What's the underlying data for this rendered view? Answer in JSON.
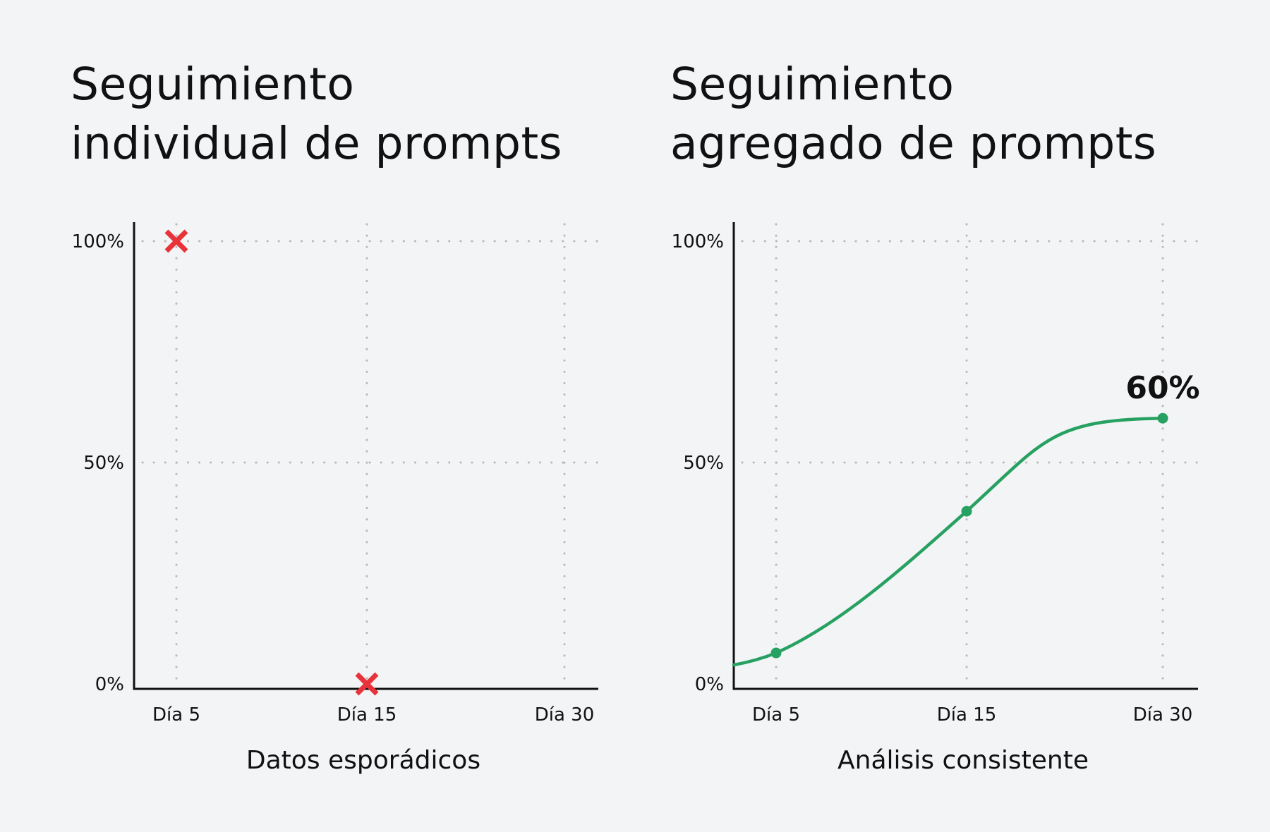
{
  "colors": {
    "background": "#f3f4f6",
    "axis": "#111111",
    "grid": "#b8b8b8",
    "marker_miss": "#e8333a",
    "series_line": "#27a161"
  },
  "chart_data": [
    {
      "type": "scatter",
      "title_lines": [
        "Seguimiento",
        "individual de prompts"
      ],
      "xlabel": "Datos esporádicos",
      "ylabel": "",
      "x_categories": [
        "Día 5",
        "Día 15",
        "Día 30"
      ],
      "y_ticks": [
        {
          "value": 0,
          "label": "0%"
        },
        {
          "value": 50,
          "label": "50%"
        },
        {
          "value": 100,
          "label": "100%"
        }
      ],
      "ylim": [
        0,
        100
      ],
      "grid": true,
      "marker": "x-icon",
      "points": [
        {
          "x": "Día 5",
          "y": 100
        },
        {
          "x": "Día 15",
          "y": 0
        }
      ]
    },
    {
      "type": "line",
      "title_lines": [
        "Seguimiento",
        "agregado de prompts"
      ],
      "xlabel": "Análisis consistente",
      "ylabel": "",
      "x_categories": [
        "Día 5",
        "Día 15",
        "Día 30"
      ],
      "y_ticks": [
        {
          "value": 0,
          "label": "0%"
        },
        {
          "value": 50,
          "label": "50%"
        },
        {
          "value": 100,
          "label": "100%"
        }
      ],
      "ylim": [
        0,
        100
      ],
      "grid": true,
      "curve": "smooth",
      "points": [
        {
          "x": "Día 5",
          "y": 7
        },
        {
          "x": "Día 15",
          "y": 39
        },
        {
          "x": "Día 30",
          "y": 60
        }
      ],
      "value_label": "60%"
    }
  ]
}
